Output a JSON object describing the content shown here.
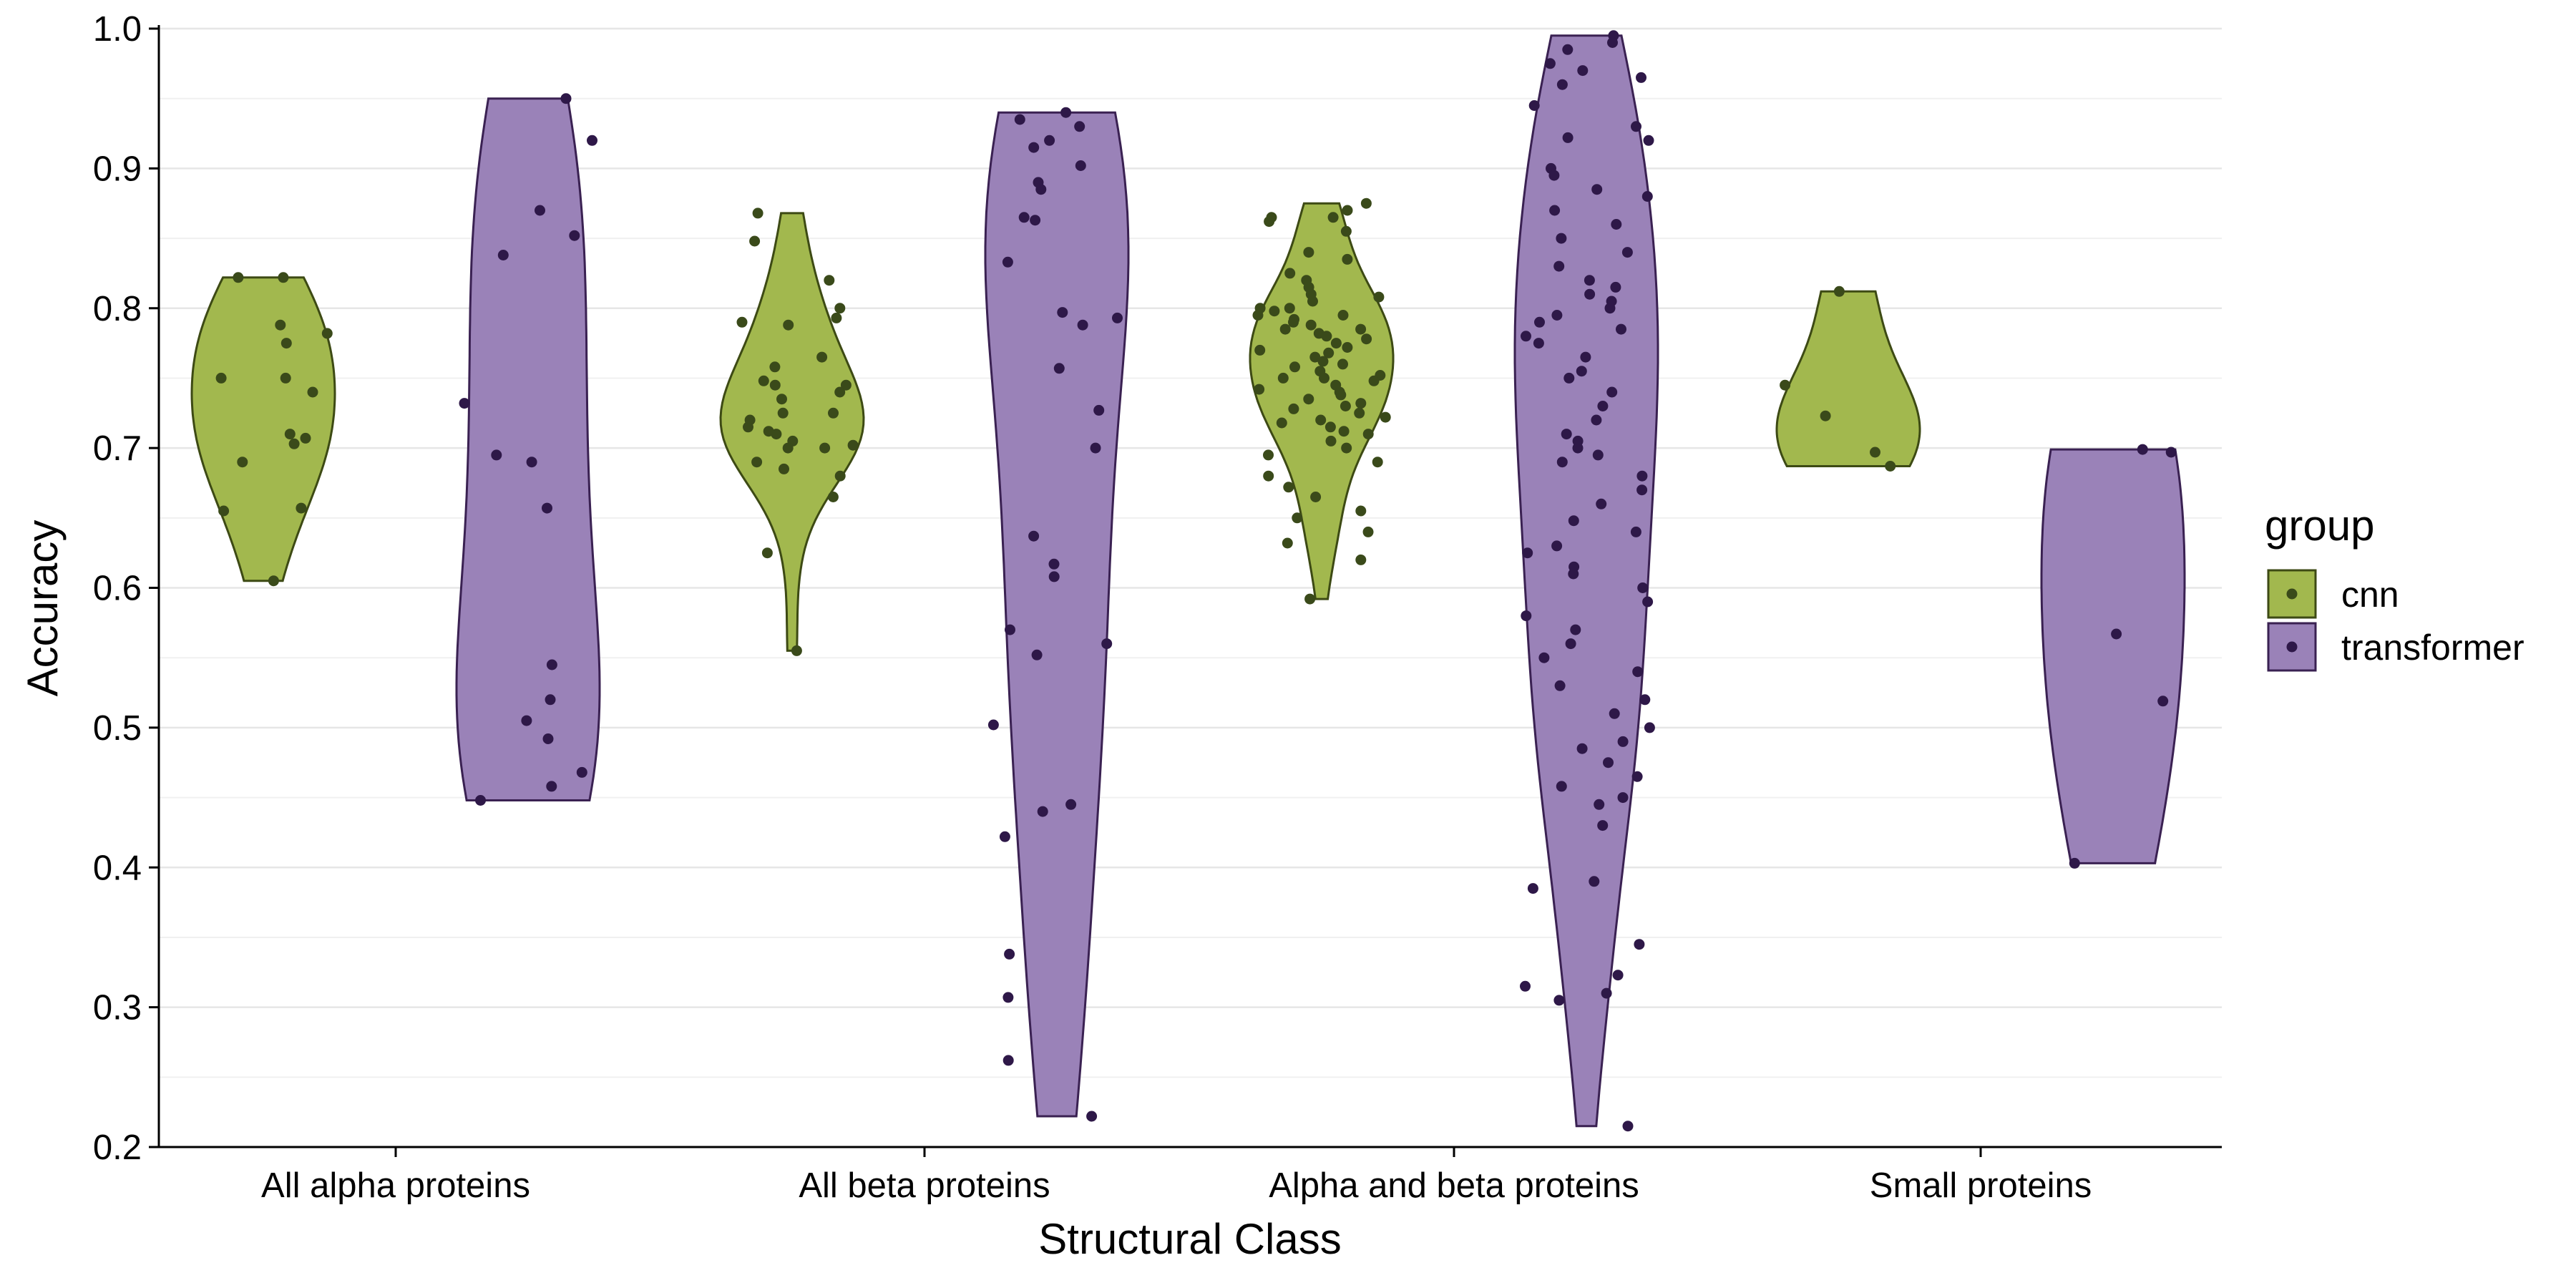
{
  "chart_data": {
    "type": "violin",
    "title": "",
    "xlabel": "Structural Class",
    "ylabel": "Accuracy",
    "ylim": [
      0.2,
      1.0
    ],
    "y_ticks": [
      "0.2",
      "0.3",
      "0.4",
      "0.5",
      "0.6",
      "0.7",
      "0.8",
      "0.9",
      "1.0"
    ],
    "grid": true,
    "legend_position": "right",
    "legend_title": "group",
    "categories": [
      "All alpha proteins",
      "All beta proteins",
      "Alpha and beta proteins",
      "Small proteins"
    ],
    "colors": {
      "cnn": "#a2b84e",
      "transformer": "#9a82b8",
      "cnn_outline": "#3d4a14",
      "transformer_outline": "#3a2152",
      "cnn_point": "#3a4a1a",
      "transformer_point": "#2e1848"
    },
    "series": [
      {
        "name": "cnn",
        "groups": [
          {
            "category": "All alpha proteins",
            "min": 0.605,
            "max": 0.822,
            "points": [
              0.822,
              0.822,
              0.788,
              0.782,
              0.775,
              0.75,
              0.75,
              0.74,
              0.71,
              0.707,
              0.703,
              0.69,
              0.657,
              0.655,
              0.605
            ]
          },
          {
            "category": "All beta proteins",
            "min": 0.555,
            "max": 0.868,
            "points": [
              0.868,
              0.848,
              0.82,
              0.8,
              0.793,
              0.79,
              0.788,
              0.765,
              0.758,
              0.748,
              0.745,
              0.745,
              0.74,
              0.735,
              0.725,
              0.725,
              0.72,
              0.715,
              0.712,
              0.71,
              0.705,
              0.702,
              0.7,
              0.7,
              0.69,
              0.685,
              0.68,
              0.665,
              0.625,
              0.555
            ]
          },
          {
            "category": "Alpha and beta proteins",
            "min": 0.592,
            "max": 0.875,
            "points": [
              0.875,
              0.87,
              0.865,
              0.865,
              0.862,
              0.855,
              0.84,
              0.835,
              0.825,
              0.82,
              0.815,
              0.81,
              0.808,
              0.805,
              0.8,
              0.8,
              0.798,
              0.795,
              0.795,
              0.792,
              0.79,
              0.788,
              0.785,
              0.785,
              0.782,
              0.78,
              0.778,
              0.775,
              0.772,
              0.77,
              0.768,
              0.765,
              0.762,
              0.76,
              0.758,
              0.755,
              0.752,
              0.75,
              0.75,
              0.748,
              0.745,
              0.742,
              0.74,
              0.738,
              0.735,
              0.732,
              0.73,
              0.728,
              0.725,
              0.722,
              0.72,
              0.718,
              0.715,
              0.712,
              0.71,
              0.705,
              0.7,
              0.695,
              0.69,
              0.68,
              0.672,
              0.665,
              0.655,
              0.65,
              0.64,
              0.632,
              0.62,
              0.592
            ]
          },
          {
            "category": "Small proteins",
            "min": 0.687,
            "max": 0.812,
            "points": [
              0.812,
              0.745,
              0.723,
              0.697,
              0.687
            ]
          }
        ]
      },
      {
        "name": "transformer",
        "groups": [
          {
            "category": "All alpha proteins",
            "min": 0.448,
            "max": 0.95,
            "points": [
              0.95,
              0.92,
              0.87,
              0.852,
              0.838,
              0.732,
              0.695,
              0.69,
              0.657,
              0.545,
              0.52,
              0.505,
              0.492,
              0.468,
              0.458,
              0.448
            ]
          },
          {
            "category": "All beta proteins",
            "min": 0.222,
            "max": 0.94,
            "points": [
              0.94,
              0.935,
              0.93,
              0.92,
              0.915,
              0.902,
              0.89,
              0.885,
              0.865,
              0.863,
              0.833,
              0.797,
              0.793,
              0.788,
              0.757,
              0.727,
              0.7,
              0.637,
              0.617,
              0.608,
              0.57,
              0.56,
              0.552,
              0.502,
              0.445,
              0.44,
              0.422,
              0.338,
              0.307,
              0.262,
              0.222
            ]
          },
          {
            "category": "Alpha and beta proteins",
            "min": 0.215,
            "max": 0.995,
            "points": [
              0.995,
              0.99,
              0.985,
              0.975,
              0.97,
              0.965,
              0.96,
              0.945,
              0.93,
              0.922,
              0.92,
              0.9,
              0.895,
              0.885,
              0.88,
              0.87,
              0.86,
              0.85,
              0.84,
              0.83,
              0.82,
              0.815,
              0.81,
              0.805,
              0.8,
              0.795,
              0.79,
              0.785,
              0.78,
              0.775,
              0.765,
              0.755,
              0.75,
              0.74,
              0.73,
              0.72,
              0.71,
              0.705,
              0.7,
              0.695,
              0.69,
              0.68,
              0.67,
              0.66,
              0.648,
              0.64,
              0.63,
              0.625,
              0.615,
              0.61,
              0.6,
              0.59,
              0.58,
              0.57,
              0.56,
              0.55,
              0.54,
              0.53,
              0.52,
              0.51,
              0.5,
              0.49,
              0.485,
              0.475,
              0.465,
              0.458,
              0.45,
              0.445,
              0.43,
              0.39,
              0.385,
              0.345,
              0.323,
              0.315,
              0.31,
              0.305,
              0.215
            ]
          },
          {
            "category": "Small proteins",
            "min": 0.403,
            "max": 0.699,
            "points": [
              0.699,
              0.697,
              0.567,
              0.519,
              0.403
            ]
          }
        ]
      }
    ]
  }
}
